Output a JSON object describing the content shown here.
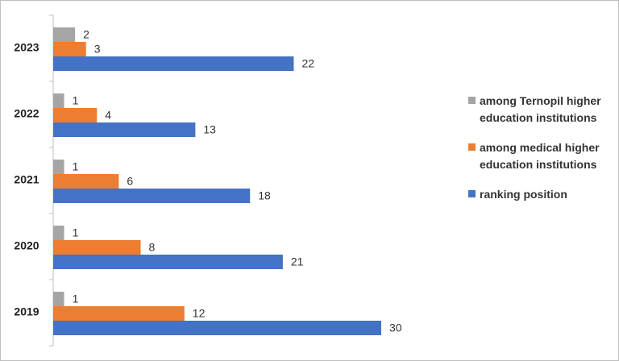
{
  "chart_data": {
    "type": "hbar",
    "categories": [
      "2023",
      "2022",
      "2021",
      "2020",
      "2019"
    ],
    "series": [
      {
        "name": "among Ternopil higher education institutions",
        "color": "#a5a5a5",
        "values": [
          2,
          1,
          1,
          1,
          1
        ]
      },
      {
        "name": "among medical higher education institutions",
        "color": "#ed7d31",
        "values": [
          3,
          4,
          6,
          8,
          12
        ]
      },
      {
        "name": "ranking position",
        "color": "#4472c4",
        "values": [
          22,
          13,
          18,
          21,
          30
        ]
      }
    ],
    "xlim": [
      0,
      30
    ],
    "legend": "right"
  }
}
